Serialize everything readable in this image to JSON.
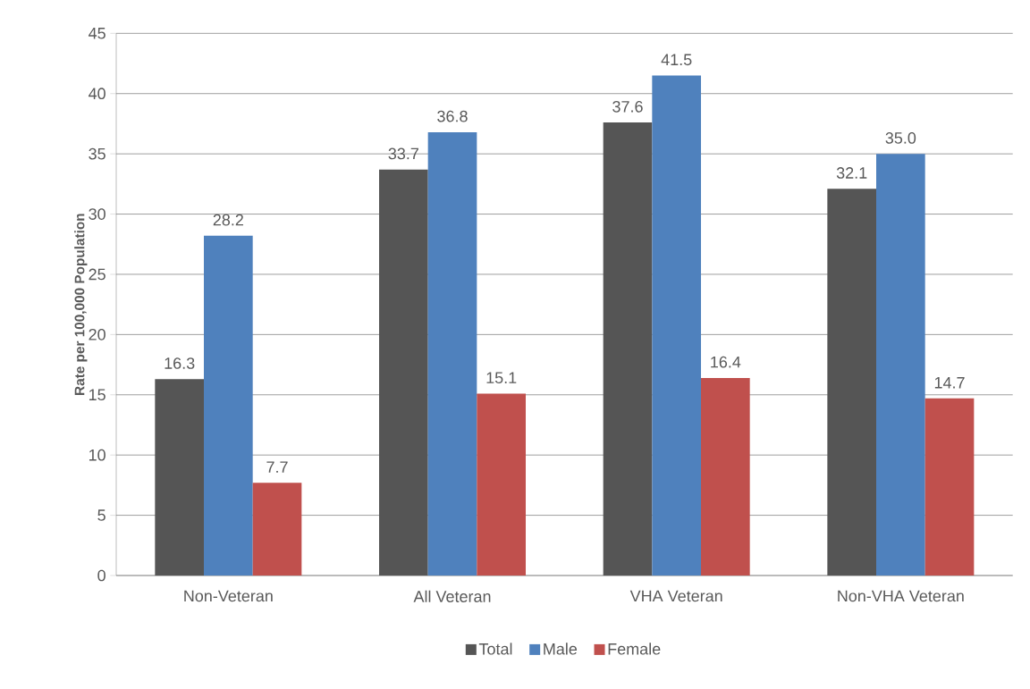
{
  "chart_data": {
    "type": "bar",
    "ylabel": "Rate per 100,000 Population",
    "categories": [
      "Non-Veteran",
      "All Veteran",
      "VHA Veteran",
      "Non-VHA Veteran"
    ],
    "series": [
      {
        "name": "Total",
        "color": "#555555",
        "values": [
          16.3,
          33.7,
          37.6,
          32.1
        ],
        "value_labels": [
          "16.3",
          "33.7",
          "37.6",
          "32.1"
        ]
      },
      {
        "name": "Male",
        "color": "#4f81bd",
        "values": [
          28.2,
          36.8,
          41.5,
          35.0
        ],
        "value_labels": [
          "28.2",
          "36.8",
          "41.5",
          "35.0"
        ]
      },
      {
        "name": "Female",
        "color": "#c0504d",
        "values": [
          7.7,
          15.1,
          16.4,
          14.7
        ],
        "value_labels": [
          "7.7",
          "15.1",
          "16.4",
          "14.7"
        ]
      }
    ],
    "ylim": [
      0,
      45
    ],
    "yticks": [
      0,
      5,
      10,
      15,
      20,
      25,
      30,
      35,
      40,
      45
    ],
    "grid": "y",
    "legend": "bottom"
  }
}
